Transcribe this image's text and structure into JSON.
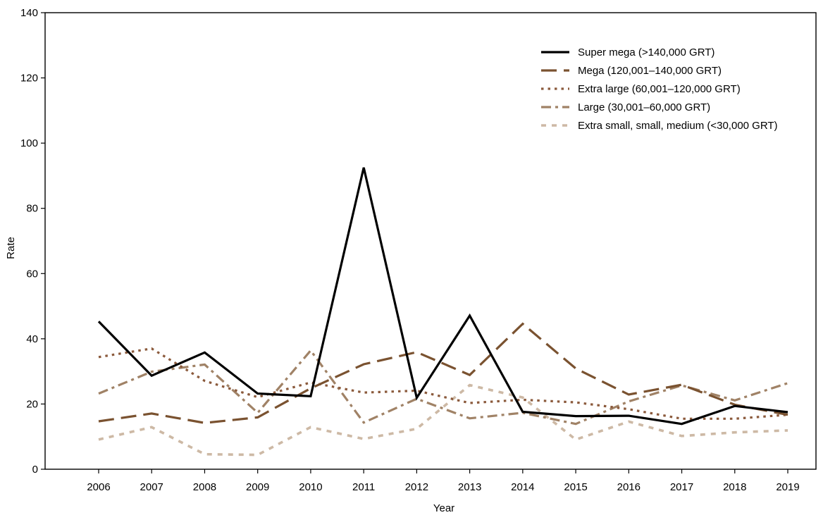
{
  "chart_data": {
    "type": "line",
    "xlabel": "Year",
    "ylabel": "Rate",
    "ylim": [
      0,
      140
    ],
    "yticks": [
      0,
      20,
      40,
      60,
      80,
      100,
      120,
      140
    ],
    "x": [
      "2006",
      "2007",
      "2008",
      "2009",
      "2010",
      "2011",
      "2012",
      "2013",
      "2014",
      "2015",
      "2016",
      "2017",
      "2018",
      "2019"
    ],
    "grid": false,
    "legend_position": "top-right",
    "series": [
      {
        "name": "Super mega (>140,000 GRT)",
        "color": "#000000",
        "style": "solid",
        "values": [
          45.3,
          28.7,
          35.8,
          23.2,
          22.4,
          92.5,
          21.9,
          47.1,
          17.6,
          16.3,
          16.4,
          13.9,
          19.4,
          17.5
        ]
      },
      {
        "name": "Mega (120,001–140,000 GRT)",
        "color": "#7a5230",
        "style": "dashed",
        "values": [
          14.7,
          17.1,
          14.2,
          15.9,
          24.8,
          32.2,
          35.9,
          28.9,
          44.6,
          30.9,
          22.9,
          25.9,
          19.8,
          16.7
        ]
      },
      {
        "name": "Extra large (60,001–120,000 GRT)",
        "color": "#8b5a3c",
        "style": "dotted",
        "values": [
          34.4,
          37.0,
          27.1,
          22.1,
          26.6,
          23.5,
          24.1,
          20.3,
          21.3,
          20.5,
          18.4,
          15.5,
          15.5,
          16.7
        ]
      },
      {
        "name": "Large (30,001–60,000 GRT)",
        "color": "#a08266",
        "style": "dashdot",
        "values": [
          23.2,
          29.9,
          32.1,
          17.3,
          36.4,
          14.3,
          21.6,
          15.6,
          17.3,
          13.9,
          20.8,
          25.7,
          21.1,
          26.4
        ]
      },
      {
        "name": "Extra small, small, medium (<30,000 GRT)",
        "color": "#cdb9a5",
        "style": "dotted-heavy",
        "values": [
          9.1,
          12.9,
          4.6,
          4.4,
          12.9,
          9.3,
          12.4,
          25.8,
          22.0,
          9.1,
          14.6,
          10.2,
          11.3,
          11.9
        ]
      }
    ]
  }
}
